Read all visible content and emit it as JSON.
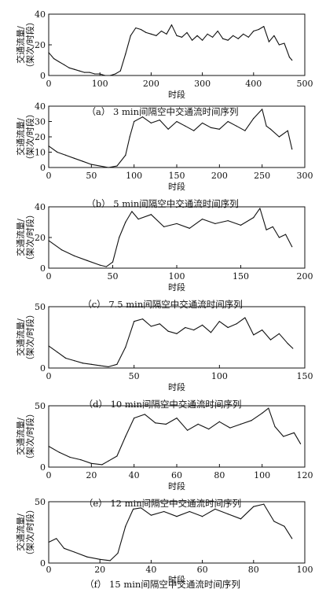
{
  "chart_data": [
    {
      "type": "line",
      "caption": "（a） 3  min间隔空中交通流时间序列",
      "xlabel": "时段",
      "ylabel": "交通流量/（架次/时段）",
      "xlim": [
        0,
        500
      ],
      "ylim": [
        0,
        40
      ],
      "xticks": [
        0,
        100,
        200,
        300,
        400,
        500
      ],
      "yticks": [
        0,
        20,
        40
      ],
      "series": [
        {
          "x": [
            0,
            10,
            20,
            30,
            40,
            50,
            60,
            70,
            80,
            90,
            100,
            110,
            120,
            130,
            140,
            150,
            160,
            170,
            180,
            190,
            200,
            210,
            220,
            230,
            240,
            250,
            260,
            270,
            280,
            290,
            300,
            310,
            320,
            330,
            340,
            350,
            360,
            370,
            380,
            390,
            400,
            410,
            420,
            430,
            440,
            450,
            460,
            470,
            475
          ],
          "values": [
            15,
            11,
            9,
            7,
            5,
            4,
            3,
            2,
            2,
            1,
            1,
            0,
            0,
            1,
            3,
            14,
            26,
            31,
            30,
            28,
            27,
            26,
            29,
            27,
            33,
            26,
            25,
            28,
            23,
            26,
            23,
            27,
            25,
            29,
            24,
            23,
            26,
            24,
            27,
            25,
            29,
            30,
            32,
            22,
            26,
            20,
            21,
            12,
            10
          ]
        }
      ]
    },
    {
      "type": "line",
      "caption": "（b） 5  min间隔空中交通流时间序列",
      "xlabel": "时段",
      "ylabel": "交通流量/（架次/时段）",
      "xlim": [
        0,
        300
      ],
      "ylim": [
        0,
        40
      ],
      "xticks": [
        0,
        50,
        100,
        150,
        200,
        250,
        300
      ],
      "yticks": [
        0,
        10,
        20,
        30,
        40
      ],
      "series": [
        {
          "x": [
            0,
            10,
            20,
            30,
            40,
            50,
            60,
            70,
            80,
            90,
            95,
            100,
            110,
            120,
            130,
            140,
            150,
            160,
            170,
            180,
            190,
            200,
            210,
            220,
            230,
            240,
            250,
            255,
            260,
            270,
            280,
            285
          ],
          "values": [
            14,
            10,
            8,
            6,
            4,
            2,
            1,
            0,
            1,
            8,
            20,
            30,
            33,
            29,
            31,
            25,
            30,
            27,
            24,
            29,
            26,
            25,
            30,
            27,
            24,
            32,
            38,
            27,
            25,
            20,
            24,
            12
          ]
        }
      ]
    },
    {
      "type": "line",
      "caption": "（c） 7.5  min间隔空中交通流时间序列",
      "xlabel": "时段",
      "ylabel": "交通流量/（架次/时段）",
      "xlim": [
        0,
        200
      ],
      "ylim": [
        0,
        40
      ],
      "xticks": [
        0,
        50,
        100,
        150,
        200
      ],
      "yticks": [
        0,
        20,
        40
      ],
      "series": [
        {
          "x": [
            0,
            10,
            20,
            30,
            40,
            45,
            50,
            55,
            60,
            65,
            70,
            80,
            90,
            100,
            110,
            120,
            130,
            140,
            150,
            160,
            165,
            170,
            175,
            180,
            185,
            190
          ],
          "values": [
            18,
            12,
            8,
            5,
            2,
            1,
            4,
            20,
            30,
            37,
            32,
            35,
            27,
            29,
            26,
            32,
            29,
            31,
            28,
            33,
            39,
            25,
            27,
            20,
            22,
            14
          ]
        }
      ]
    },
    {
      "type": "line",
      "caption": "（d） 10  min间隔空中交通流时间序列",
      "xlabel": "时段",
      "ylabel": "交通流量/（架次/时段）",
      "xlim": [
        0,
        150
      ],
      "ylim": [
        0,
        50
      ],
      "xticks": [
        0,
        50,
        100,
        150
      ],
      "yticks": [
        0,
        50
      ],
      "series": [
        {
          "x": [
            0,
            5,
            10,
            15,
            20,
            25,
            30,
            35,
            40,
            45,
            50,
            55,
            60,
            65,
            70,
            75,
            80,
            85,
            90,
            95,
            100,
            105,
            110,
            115,
            120,
            125,
            130,
            135,
            140,
            143
          ],
          "values": [
            18,
            13,
            8,
            6,
            4,
            3,
            2,
            1,
            3,
            17,
            38,
            40,
            34,
            36,
            30,
            28,
            33,
            31,
            35,
            29,
            38,
            33,
            36,
            41,
            27,
            31,
            23,
            28,
            20,
            16
          ]
        }
      ]
    },
    {
      "type": "line",
      "caption": "（e） 12  min间隔空中交通流时间序列",
      "xlabel": "时段",
      "ylabel": "交通流量/（架次/时段）",
      "xlim": [
        0,
        120
      ],
      "ylim": [
        0,
        50
      ],
      "xticks": [
        0,
        20,
        40,
        60,
        80,
        100,
        120
      ],
      "yticks": [
        0,
        50
      ],
      "series": [
        {
          "x": [
            0,
            5,
            10,
            15,
            20,
            25,
            28,
            32,
            36,
            40,
            45,
            50,
            55,
            60,
            65,
            70,
            75,
            80,
            85,
            90,
            95,
            100,
            103,
            106,
            110,
            115,
            118
          ],
          "values": [
            17,
            12,
            8,
            6,
            3,
            2,
            5,
            9,
            25,
            40,
            43,
            36,
            35,
            40,
            30,
            35,
            31,
            37,
            32,
            35,
            38,
            44,
            48,
            33,
            25,
            28,
            19
          ]
        }
      ]
    },
    {
      "type": "line",
      "caption": "（f） 15  min间隔空中交通流时间序列",
      "xlabel": "时段",
      "ylabel": "交通流量/（架次/时段）",
      "xlim": [
        0,
        100
      ],
      "ylim": [
        0,
        50
      ],
      "xticks": [
        0,
        20,
        40,
        60,
        80,
        100
      ],
      "yticks": [
        0,
        50
      ],
      "series": [
        {
          "x": [
            0,
            3,
            6,
            10,
            15,
            20,
            24,
            27,
            30,
            33,
            36,
            40,
            45,
            50,
            55,
            60,
            65,
            70,
            75,
            80,
            84,
            88,
            92,
            95
          ],
          "values": [
            17,
            20,
            12,
            9,
            5,
            3,
            2,
            8,
            30,
            44,
            45,
            39,
            42,
            38,
            42,
            38,
            44,
            40,
            36,
            46,
            48,
            34,
            30,
            20
          ]
        }
      ]
    }
  ]
}
